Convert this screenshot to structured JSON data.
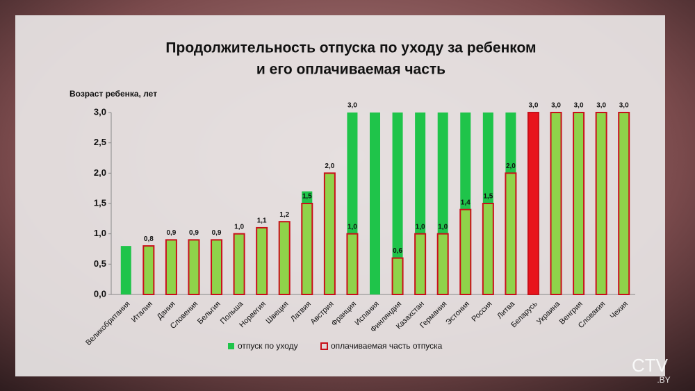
{
  "chart_data": {
    "type": "bar",
    "title": "Продолжительность отпуска по уходу за ребенком",
    "subtitle": "и его оплачиваемая часть",
    "y_label": "Возраст ребенка, лет",
    "categories": [
      "Великобритания",
      "Италия",
      "Дания",
      "Словения",
      "Бельгия",
      "Польша",
      "Норвегия",
      "Швеция",
      "Латвия",
      "Австрия",
      "Франция",
      "Испания",
      "Финляндия",
      "Казахстан",
      "Германия",
      "Эстония",
      "Россия",
      "Литва",
      "Беларусь",
      "Украина",
      "Венгрия",
      "Словакия",
      "Чехия"
    ],
    "series": [
      {
        "name": "отпуск по уходу",
        "color": "#1fc44a",
        "values": [
          0.8,
          0.8,
          0.9,
          0.9,
          0.9,
          1.0,
          1.1,
          1.2,
          1.7,
          2.0,
          3.0,
          3.0,
          3.0,
          3.0,
          3.0,
          3.0,
          3.0,
          3.0,
          3.0,
          3.0,
          3.0,
          3.0,
          3.0
        ],
        "value_labels": [
          null,
          null,
          null,
          null,
          null,
          null,
          null,
          null,
          null,
          null,
          "3,0",
          null,
          null,
          null,
          null,
          null,
          null,
          null,
          null,
          null,
          null,
          null,
          null
        ]
      },
      {
        "name": "оплачиваемая часть отпуска",
        "color": "#8fd34a",
        "edge_color": "#c8101a",
        "values": [
          null,
          0.8,
          0.9,
          0.9,
          0.9,
          1.0,
          1.1,
          1.2,
          1.5,
          2.0,
          1.0,
          null,
          0.6,
          1.0,
          1.0,
          1.4,
          1.5,
          2.0,
          3.0,
          3.0,
          3.0,
          3.0,
          3.0
        ],
        "value_labels": [
          null,
          "0,8",
          "0,9",
          "0,9",
          "0,9",
          "1,0",
          "1,1",
          "1,2",
          "1,5",
          "2,0",
          "1,0",
          null,
          "0,6",
          "1,0",
          "1,0",
          "1,4",
          "1,5",
          "2,0",
          "3,0",
          "3,0",
          "3,0",
          "3,0",
          "3,0"
        ]
      }
    ],
    "highlight": {
      "category": "Беларусь",
      "color": "#e8141c"
    },
    "ylim": [
      0,
      3
    ],
    "yticks": [
      {
        "value": 0,
        "label": "0,0"
      },
      {
        "value": 0.5,
        "label": "0,5"
      },
      {
        "value": 1,
        "label": "1,0"
      },
      {
        "value": 1.5,
        "label": "1,5"
      },
      {
        "value": 2,
        "label": "2,0"
      },
      {
        "value": 2.5,
        "label": "2,5"
      },
      {
        "value": 3,
        "label": "3,0"
      }
    ]
  },
  "logo": "CTV",
  "logo_sub": ".BY"
}
